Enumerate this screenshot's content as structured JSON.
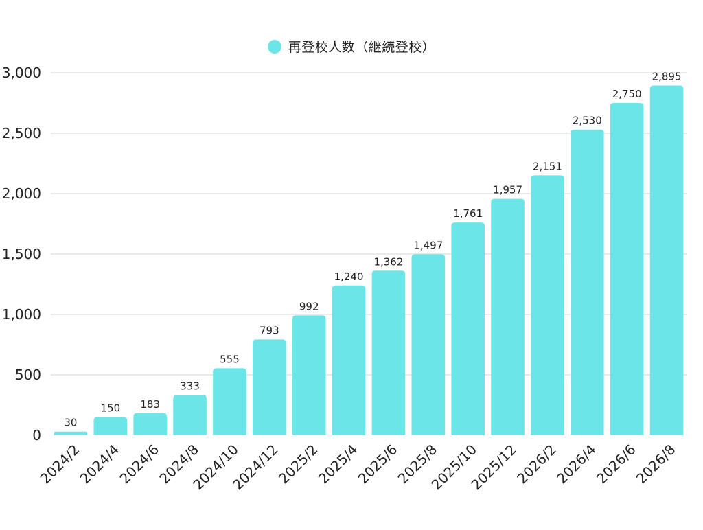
{
  "chart_data": {
    "type": "bar",
    "title": "",
    "xlabel": "",
    "ylabel": "",
    "categories": [
      "2024/2",
      "2024/4",
      "2024/6",
      "2024/8",
      "2024/10",
      "2024/12",
      "2025/2",
      "2025/4",
      "2025/6",
      "2025/8",
      "2025/10",
      "2025/12",
      "2026/2",
      "2026/4",
      "2026/6",
      "2026/8"
    ],
    "series": [
      {
        "name": "再登校人数（継続登校）",
        "values": [
          30,
          150,
          183,
          333,
          555,
          793,
          992,
          1240,
          1362,
          1497,
          1761,
          1957,
          2151,
          2530,
          2750,
          2895
        ],
        "value_labels": [
          "30",
          "150",
          "183",
          "333",
          "555",
          "793",
          "992",
          "1,240",
          "1,362",
          "1,497",
          "1,761",
          "1,957",
          "2,151",
          "2,530",
          "2,750",
          "2,895"
        ]
      }
    ],
    "ylim": [
      0,
      3000
    ],
    "yticks": [
      0,
      500,
      1000,
      1500,
      2000,
      2500,
      3000
    ],
    "ytick_labels": [
      "0",
      "500",
      "1,000",
      "1,500",
      "2,000",
      "2,500",
      "3,000"
    ],
    "grid": true,
    "legend_position": "top-center",
    "colors": {
      "bar": "#6ce5e8",
      "grid": "#d6d6d6",
      "text": "#222222"
    }
  }
}
